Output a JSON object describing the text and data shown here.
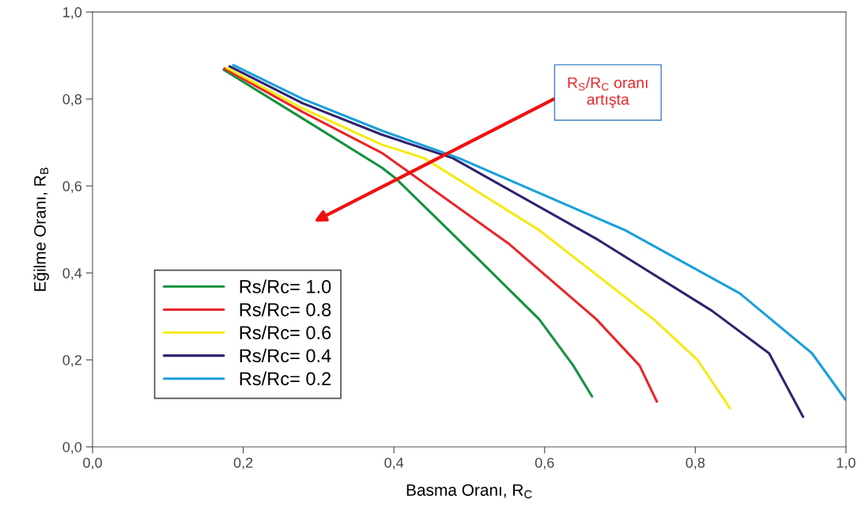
{
  "chart_data": {
    "type": "line",
    "xlabel": "Basma Oranı, R$_{C}$",
    "ylabel": "Eğilme Oranı, R$_{B}$",
    "xlim": [
      0,
      1
    ],
    "ylim": [
      0,
      1
    ],
    "xticks": [
      {
        "value": 0,
        "label": "0,0"
      },
      {
        "value": 0.2,
        "label": "0,2"
      },
      {
        "value": 0.4,
        "label": "0,4"
      },
      {
        "value": 0.6,
        "label": "0,6"
      },
      {
        "value": 0.8,
        "label": "0,8"
      },
      {
        "value": 1,
        "label": "1,0"
      }
    ],
    "yticks": [
      {
        "value": 0,
        "label": "0,0"
      },
      {
        "value": 0.2,
        "label": "0,2"
      },
      {
        "value": 0.4,
        "label": "0,4"
      },
      {
        "value": 0.6,
        "label": "0,6"
      },
      {
        "value": 0.8,
        "label": "0,8"
      },
      {
        "value": 1,
        "label": "1,0"
      }
    ],
    "grid": false,
    "legend": "bottom left",
    "marker": "none",
    "line_style": "solid",
    "annotations": [
      "R$_{S}$/R$_{C}$ oranı\nartışta"
    ],
    "series": [
      {
        "name": "Rs/Rc= 1.0",
        "color": "#13923f",
        "x": [
          0.174,
          0.279,
          0.384,
          0.402,
          0.516,
          0.593,
          0.638,
          0.663
        ],
        "values": [
          0.867,
          0.755,
          0.642,
          0.618,
          0.425,
          0.293,
          0.187,
          0.116
        ]
      },
      {
        "name": "Rs/Rc= 0.8",
        "color": "#e8272a",
        "x": [
          0.175,
          0.279,
          0.384,
          0.554,
          0.669,
          0.726,
          0.749
        ],
        "values": [
          0.87,
          0.77,
          0.676,
          0.465,
          0.293,
          0.187,
          0.104
        ]
      },
      {
        "name": "Rs/Rc= 0.6",
        "color": "#f5ea14",
        "x": [
          0.178,
          0.279,
          0.384,
          0.44,
          0.593,
          0.745,
          0.803,
          0.846
        ],
        "values": [
          0.872,
          0.778,
          0.695,
          0.664,
          0.498,
          0.293,
          0.2,
          0.089
        ]
      },
      {
        "name": "Rs/Rc= 0.4",
        "color": "#2e2471",
        "x": [
          0.182,
          0.279,
          0.384,
          0.478,
          0.669,
          0.822,
          0.898,
          0.943
        ],
        "values": [
          0.875,
          0.79,
          0.718,
          0.664,
          0.478,
          0.313,
          0.215,
          0.069
        ]
      },
      {
        "name": "Rs/Rc= 0.2",
        "color": "#1aa0dc",
        "x": [
          0.187,
          0.279,
          0.384,
          0.486,
          0.707,
          0.859,
          0.955,
          0.999
        ],
        "values": [
          0.878,
          0.8,
          0.727,
          0.664,
          0.498,
          0.353,
          0.215,
          0.109
        ]
      }
    ]
  }
}
